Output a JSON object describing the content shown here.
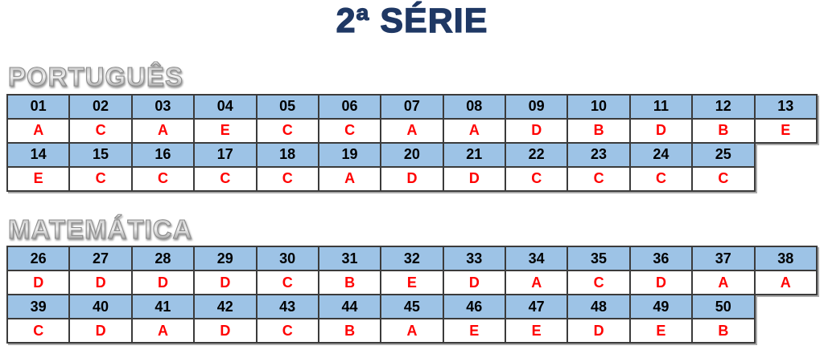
{
  "page": {
    "title": "2ª SÉRIE"
  },
  "colors": {
    "title_color": "#1F3864",
    "header_fill": "#9DC3E6",
    "answer_color": "#FF0000",
    "border_color": "#3B3B3B"
  },
  "sections": [
    {
      "id": "portugues",
      "name": "PORTUGUÊS",
      "rows": [
        {
          "numbers": [
            "01",
            "02",
            "03",
            "04",
            "05",
            "06",
            "07",
            "08",
            "09",
            "10",
            "11",
            "12",
            "13"
          ],
          "answers": [
            "A",
            "C",
            "A",
            "E",
            "C",
            "C",
            "A",
            "A",
            "D",
            "B",
            "D",
            "B",
            "E"
          ]
        },
        {
          "numbers": [
            "14",
            "15",
            "16",
            "17",
            "18",
            "19",
            "20",
            "21",
            "22",
            "23",
            "24",
            "25"
          ],
          "answers": [
            "E",
            "C",
            "C",
            "C",
            "C",
            "A",
            "D",
            "D",
            "C",
            "C",
            "C",
            "C"
          ]
        }
      ]
    },
    {
      "id": "matematica",
      "name": "MATEMÁTICA",
      "rows": [
        {
          "numbers": [
            "26",
            "27",
            "28",
            "29",
            "30",
            "31",
            "32",
            "33",
            "34",
            "35",
            "36",
            "37",
            "38"
          ],
          "answers": [
            "D",
            "D",
            "D",
            "D",
            "C",
            "B",
            "E",
            "D",
            "A",
            "C",
            "D",
            "A",
            "A"
          ]
        },
        {
          "numbers": [
            "39",
            "40",
            "41",
            "42",
            "43",
            "44",
            "45",
            "46",
            "47",
            "48",
            "49",
            "50"
          ],
          "answers": [
            "C",
            "D",
            "A",
            "D",
            "C",
            "B",
            "A",
            "E",
            "E",
            "D",
            "E",
            "B"
          ]
        }
      ]
    }
  ]
}
